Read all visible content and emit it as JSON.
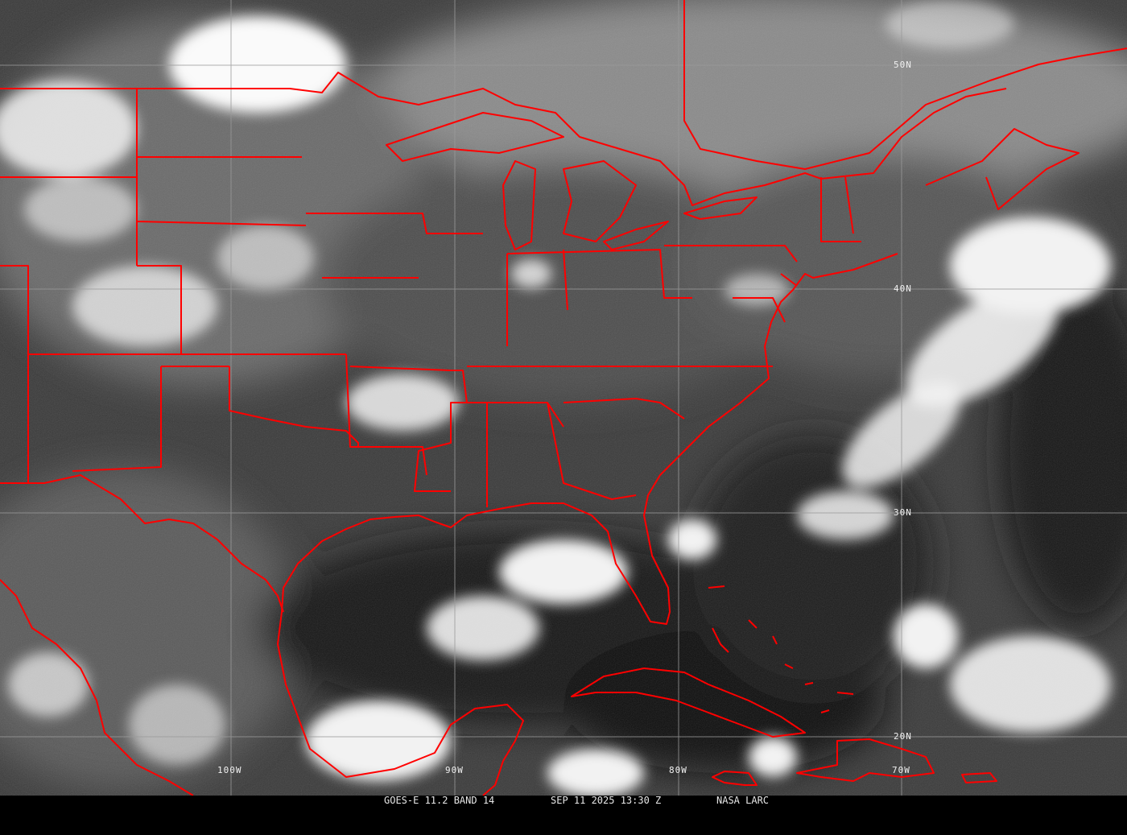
{
  "image": {
    "satellite": "GOES-E",
    "caption": {
      "product": "GOES-E 11.2 BAND 14",
      "datetime": "SEP 11 2025 13:30 Z",
      "source": "NASA LARC"
    },
    "latitude_labels": [
      "50N",
      "40N",
      "30N",
      "20N"
    ],
    "longitude_labels": [
      "100W",
      "90W",
      "80W",
      "70W"
    ],
    "colors": {
      "boundaries": "#ff0000",
      "grid": "#9a9a9a",
      "caption_bg": "#000000",
      "caption_text": "#e8e8e8"
    }
  }
}
